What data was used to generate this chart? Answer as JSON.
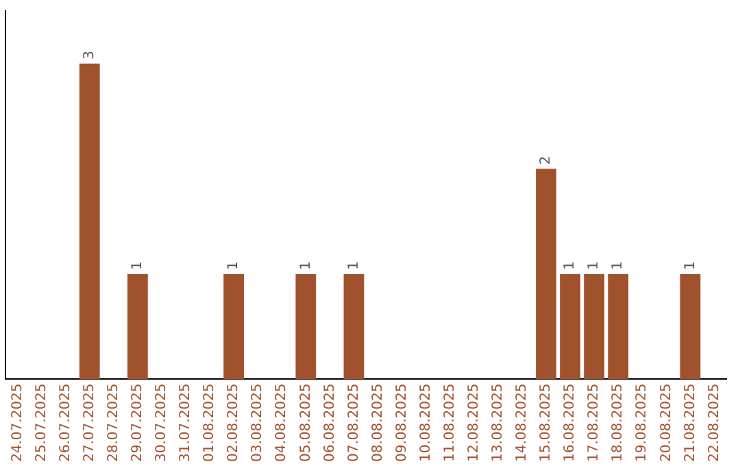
{
  "chart_data": {
    "type": "bar",
    "categories": [
      "24.07.2025",
      "25.07.2025",
      "26.07.2025",
      "27.07.2025",
      "28.07.2025",
      "29.07.2025",
      "30.07.2025",
      "31.07.2025",
      "01.08.2025",
      "02.08.2025",
      "03.08.2025",
      "04.08.2025",
      "05.08.2025",
      "06.08.2025",
      "07.08.2025",
      "08.08.2025",
      "09.08.2025",
      "10.08.2025",
      "11.08.2025",
      "12.08.2025",
      "13.08.2025",
      "14.08.2025",
      "15.08.2025",
      "16.08.2025",
      "17.08.2025",
      "18.08.2025",
      "19.08.2025",
      "20.08.2025",
      "21.08.2025",
      "22.08.2025"
    ],
    "values": [
      null,
      null,
      null,
      3,
      null,
      1,
      null,
      null,
      null,
      1,
      null,
      null,
      1,
      null,
      1,
      null,
      null,
      null,
      null,
      null,
      null,
      null,
      2,
      1,
      1,
      1,
      null,
      null,
      1,
      null
    ],
    "color": "#a0522d",
    "data_labels": true,
    "tick_labels": "x",
    "grid": false,
    "legend": false
  }
}
